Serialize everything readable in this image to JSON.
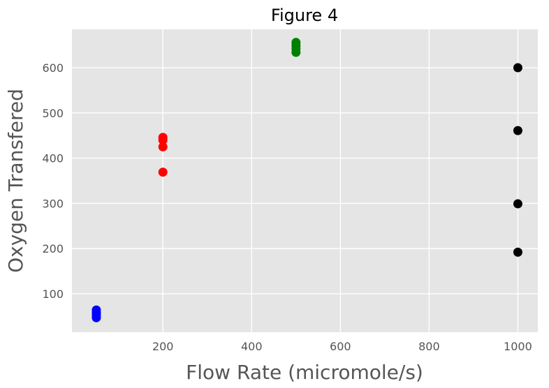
{
  "chart_data": {
    "type": "scatter",
    "title": "Figure 4",
    "xlabel": "Flow Rate (micromole/s)",
    "ylabel": "Oxygen Transfered",
    "xlim": [
      -5,
      1045
    ],
    "ylim": [
      15,
      685
    ],
    "xticks": [
      200,
      400,
      600,
      800,
      1000
    ],
    "yticks": [
      100,
      200,
      300,
      400,
      500,
      600
    ],
    "grid": true,
    "background": "#e5e5e5",
    "series": [
      {
        "color": "#0000ff",
        "x": [
          50,
          50,
          50,
          50
        ],
        "y": [
          47,
          53,
          58,
          64
        ]
      },
      {
        "color": "#ff0000",
        "x": [
          200,
          200,
          200,
          200
        ],
        "y": [
          369,
          425,
          440,
          446
        ]
      },
      {
        "color": "#008000",
        "x": [
          500,
          500,
          500,
          500
        ],
        "y": [
          634,
          642,
          649,
          656
        ]
      },
      {
        "color": "#000000",
        "x": [
          1000,
          1000,
          1000,
          1000
        ],
        "y": [
          192,
          299,
          461,
          600
        ]
      }
    ]
  }
}
